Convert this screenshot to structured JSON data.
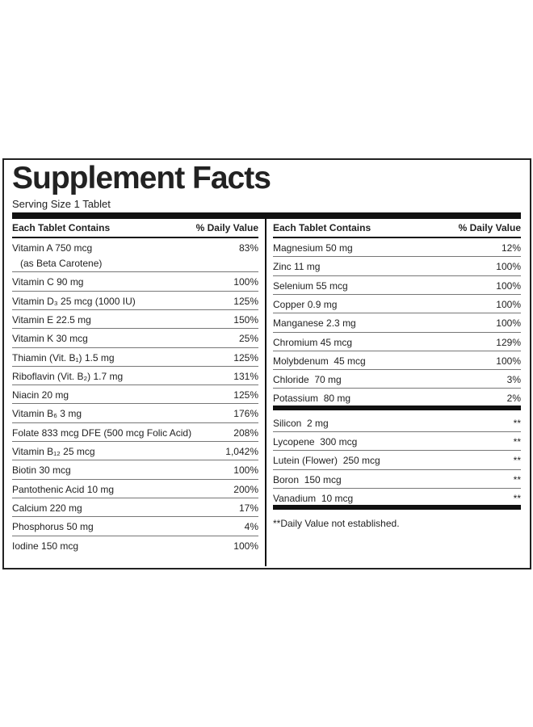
{
  "title": "Supplement Facts",
  "serving_size": "Serving Size 1 Tablet",
  "left": {
    "header": {
      "name": "Each Tablet Contains",
      "dv": "% Daily Value"
    },
    "rows": [
      {
        "name": "Vitamin A 750 mcg",
        "note": "(as Beta Carotene)",
        "dv": "83%"
      },
      {
        "name": "Vitamin C 90 mg",
        "dv": "100%"
      },
      {
        "name": "Vitamin D₃ 25 mcg (1000 IU)",
        "dv": "125%"
      },
      {
        "name": "Vitamin E 22.5 mg",
        "dv": "150%"
      },
      {
        "name": "Vitamin K 30 mcg",
        "dv": "25%"
      },
      {
        "name": "Thiamin (Vit. B₁) 1.5 mg",
        "dv": "125%"
      },
      {
        "name": "Riboflavin (Vit. B₂) 1.7 mg",
        "dv": "131%"
      },
      {
        "name": "Niacin 20 mg",
        "dv": "125%"
      },
      {
        "name": "Vitamin B₆ 3 mg",
        "dv": "176%"
      },
      {
        "name": "Folate 833 mcg DFE (500 mcg Folic Acid)",
        "dv": "208%"
      },
      {
        "name": "Vitamin B₁₂ 25 mcg",
        "dv": "1,042%"
      },
      {
        "name": "Biotin 30 mcg",
        "dv": "100%"
      },
      {
        "name": "Pantothenic Acid 10 mg",
        "dv": "200%"
      },
      {
        "name": "Calcium 220 mg",
        "dv": "17%"
      },
      {
        "name": "Phosphorus 50 mg",
        "dv": "4%"
      },
      {
        "name": "Iodine 150 mcg",
        "dv": "100%"
      }
    ]
  },
  "right": {
    "header": {
      "name": "Each Tablet Contains",
      "dv": "% Daily Value"
    },
    "rows": [
      {
        "name": "Magnesium 50 mg",
        "dv": "12%"
      },
      {
        "name": "Zinc 11 mg",
        "dv": "100%"
      },
      {
        "name": "Selenium 55 mcg",
        "dv": "100%"
      },
      {
        "name": "Copper 0.9 mg",
        "dv": "100%"
      },
      {
        "name": "Manganese 2.3 mg",
        "dv": "100%"
      },
      {
        "name": "Chromium 45 mcg",
        "dv": "129%"
      },
      {
        "name": "Molybdenum  45 mcg",
        "dv": "100%"
      },
      {
        "name": "Chloride  70 mg",
        "dv": "3%"
      },
      {
        "name": "Potassium  80 mg",
        "dv": "2%"
      }
    ],
    "other_rows": [
      {
        "name": "Silicon  2 mg",
        "dv": "**"
      },
      {
        "name": "Lycopene  300 mcg",
        "dv": "**"
      },
      {
        "name": "Lutein (Flower)  250 mcg",
        "dv": "**"
      },
      {
        "name": "Boron  150 mcg",
        "dv": "**"
      },
      {
        "name": "Vanadium  10 mcg",
        "dv": "**"
      }
    ],
    "footnote": "**Daily Value not established."
  }
}
